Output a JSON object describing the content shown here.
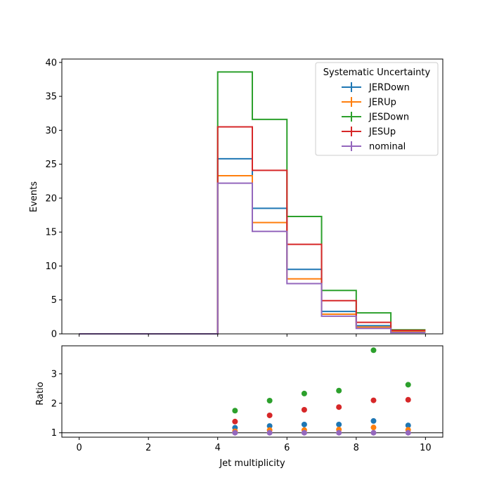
{
  "chart_data": [
    {
      "type": "line",
      "subtype": "step-histogram",
      "xlabel": "",
      "ylabel": "Events",
      "xlim": [
        -0.5,
        10.5
      ],
      "ylim": [
        0,
        40.5
      ],
      "yticks": [
        0,
        5,
        10,
        15,
        20,
        25,
        30,
        35,
        40
      ],
      "ytick_labels": [
        "0",
        "5",
        "10",
        "15",
        "20",
        "25",
        "30",
        "35",
        "40"
      ],
      "xticks": [
        0,
        2,
        4,
        6,
        8,
        10
      ],
      "bin_edges": [
        0,
        1,
        2,
        3,
        4,
        5,
        6,
        7,
        8,
        9,
        10
      ],
      "legend": {
        "title": "Systematic Uncertainty",
        "placement": "top-right"
      },
      "series": [
        {
          "name": "JERDown",
          "color": "#1f77b4",
          "values": [
            0,
            0,
            0,
            0,
            25.8,
            18.5,
            9.5,
            3.3,
            1.2,
            0.3
          ]
        },
        {
          "name": "JERUp",
          "color": "#ff7f0e",
          "values": [
            0,
            0,
            0,
            0,
            23.3,
            16.4,
            8.1,
            2.9,
            1.0,
            0.3
          ]
        },
        {
          "name": "JESDown",
          "color": "#2ca02c",
          "values": [
            0,
            0,
            0,
            0,
            38.6,
            31.6,
            17.3,
            6.4,
            3.1,
            0.6
          ]
        },
        {
          "name": "JESUp",
          "color": "#d62728",
          "values": [
            0,
            0,
            0,
            0,
            30.5,
            24.1,
            13.2,
            4.9,
            1.7,
            0.5
          ]
        },
        {
          "name": "nominal",
          "color": "#9467bd",
          "values": [
            0,
            0,
            0,
            0,
            22.2,
            15.1,
            7.4,
            2.6,
            0.8,
            0.2
          ]
        }
      ]
    },
    {
      "type": "scatter",
      "xlabel": "Jet multiplicity",
      "ylabel": "Ratio",
      "xlim": [
        -0.5,
        10.5
      ],
      "ylim": [
        0.85,
        3.95
      ],
      "xticks": [
        0,
        2,
        4,
        6,
        8,
        10
      ],
      "xtick_labels": [
        "0",
        "2",
        "4",
        "6",
        "8",
        "10"
      ],
      "yticks": [
        1,
        2,
        3
      ],
      "ytick_labels": [
        "1",
        "2",
        "3"
      ],
      "reference_line": 1,
      "x": [
        4.5,
        5.5,
        6.5,
        7.5,
        8.5,
        9.5
      ],
      "series": [
        {
          "name": "JERDown",
          "color": "#1f77b4",
          "values": [
            1.17,
            1.23,
            1.28,
            1.28,
            1.4,
            1.25
          ]
        },
        {
          "name": "JERUp",
          "color": "#ff7f0e",
          "values": [
            1.05,
            1.09,
            1.09,
            1.11,
            1.18,
            1.1
          ]
        },
        {
          "name": "JESDown",
          "color": "#2ca02c",
          "values": [
            1.75,
            2.09,
            2.33,
            2.43,
            3.8,
            2.63
          ]
        },
        {
          "name": "JESUp",
          "color": "#d62728",
          "values": [
            1.38,
            1.59,
            1.78,
            1.87,
            2.1,
            2.12
          ]
        },
        {
          "name": "nominal",
          "color": "#9467bd",
          "values": [
            1.0,
            1.0,
            1.0,
            1.0,
            1.0,
            1.0
          ]
        }
      ]
    }
  ]
}
